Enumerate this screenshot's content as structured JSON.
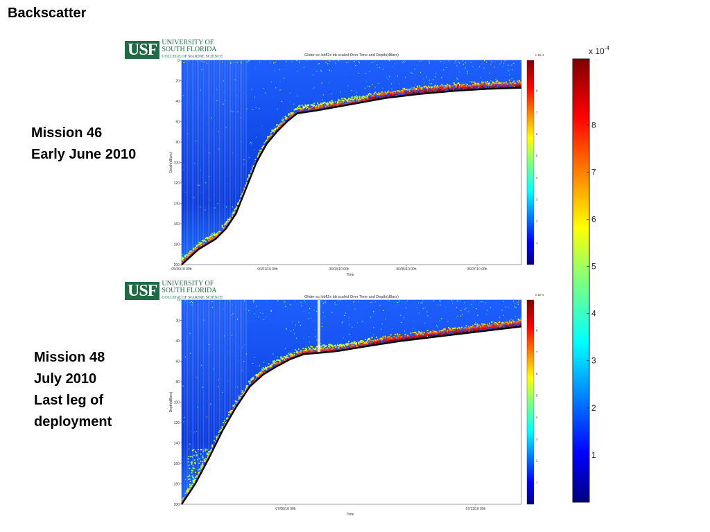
{
  "slide": {
    "title": "Backscatter",
    "missions": [
      {
        "lines": [
          "Mission 46",
          "Early June 2010"
        ]
      },
      {
        "lines": [
          "Mission 48",
          "July 2010",
          "Last leg of",
          "deployment"
        ]
      }
    ]
  },
  "logo": {
    "abbr": "USF",
    "line1": "UNIVERSITY OF",
    "line2": "SOUTH FLORIDA",
    "line3": "COLLEGE OF MARINE SCIENCE"
  },
  "colorbar_large": {
    "exponent_label": "x 10",
    "exponent": "-4",
    "ticks": [
      "1",
      "2",
      "3",
      "4",
      "5",
      "6",
      "7",
      "8"
    ],
    "range": [
      0,
      9.4
    ]
  },
  "colors": {
    "usf_green": "#1e6b46",
    "jet_low": "#00007f",
    "jet_high": "#7f0000",
    "bottom_track": "#000000"
  },
  "chart_data": [
    {
      "type": "heatmap",
      "title": "Glider sci bbfl2s bb scaled Over Time and Depth(dBars)",
      "xlabel": "Time",
      "ylabel": "Depth(dBars)",
      "x_ticks": [
        "05/30/10 00h",
        "06/01/10 00h",
        "06/03/10 00h",
        "06/05/10 00h",
        "06/07/10 00h"
      ],
      "y_ticks": [
        "0",
        "20",
        "40",
        "60",
        "80",
        "100",
        "120",
        "140",
        "160",
        "180",
        "200"
      ],
      "ylim": [
        0,
        200
      ],
      "y_inverted": true,
      "colorbar_scale": "x 10^-4",
      "colorbar_ticks": [
        "1",
        "2",
        "3",
        "4",
        "5",
        "6",
        "7",
        "8"
      ],
      "bottom_profile": {
        "x_frac": [
          0.0,
          0.05,
          0.1,
          0.13,
          0.16,
          0.19,
          0.22,
          0.25,
          0.28,
          0.31,
          0.34,
          0.4,
          0.5,
          0.6,
          0.7,
          0.8,
          0.9,
          1.0
        ],
        "depth": [
          200,
          185,
          175,
          165,
          150,
          125,
          100,
          82,
          70,
          60,
          52,
          49,
          43,
          37,
          33,
          30,
          28,
          27
        ]
      }
    },
    {
      "type": "heatmap",
      "title": "Glider sci bbfl2s bb scaled Over Time and Depth(dBars)",
      "xlabel": "Time",
      "ylabel": "Depth(dBars)",
      "x_ticks": [
        "07/06/10 00h",
        "07/11/10 00h"
      ],
      "y_ticks": [
        "0",
        "20",
        "40",
        "60",
        "80",
        "100",
        "120",
        "140",
        "160",
        "180",
        "200"
      ],
      "ylim": [
        0,
        200
      ],
      "y_inverted": true,
      "colorbar_scale": "x 10^-4",
      "colorbar_ticks": [
        "1",
        "2",
        "3",
        "4",
        "5",
        "6",
        "7",
        "8"
      ],
      "bottom_profile": {
        "x_frac": [
          0.0,
          0.04,
          0.08,
          0.12,
          0.16,
          0.2,
          0.24,
          0.28,
          0.32,
          0.36,
          0.4,
          0.46,
          0.55,
          0.65,
          0.75,
          0.85,
          0.95,
          1.0
        ],
        "depth": [
          200,
          180,
          155,
          128,
          105,
          85,
          73,
          65,
          58,
          53,
          52,
          50,
          45,
          40,
          36,
          32,
          28,
          26
        ]
      }
    }
  ]
}
